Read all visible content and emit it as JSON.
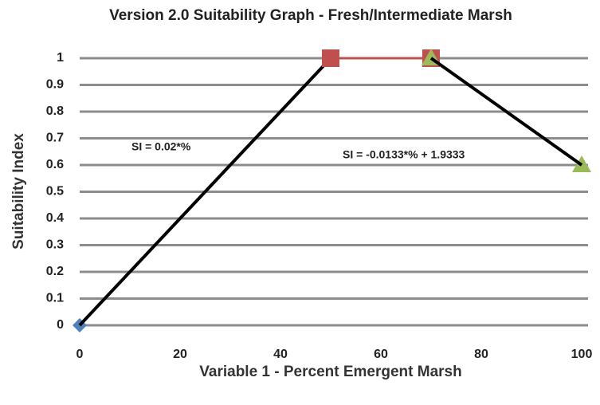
{
  "chart_data": {
    "type": "line",
    "title": "Version 2.0 Suitability Graph - Fresh/Intermediate Marsh",
    "xlabel": "Variable 1 - Percent Emergent Marsh",
    "ylabel": "Suitability Index",
    "xlim": [
      0,
      100
    ],
    "xticks": [
      0,
      20,
      40,
      60,
      80,
      100
    ],
    "ylim": [
      0,
      1
    ],
    "yticks": [
      0,
      0.1,
      0.2,
      0.3,
      0.4,
      0.5,
      0.6,
      0.7,
      0.8,
      0.9,
      1
    ],
    "grid": true,
    "series": [
      {
        "color": "#4f81bd",
        "marker": "diamond",
        "trendline": true,
        "x": [
          0,
          50
        ],
        "values": [
          0,
          1
        ]
      },
      {
        "color": "#c0504d",
        "marker": "square",
        "trendline": false,
        "x": [
          50,
          70
        ],
        "values": [
          1,
          1
        ]
      },
      {
        "color": "#9bbb59",
        "marker": "triangle",
        "trendline": true,
        "x": [
          70,
          100
        ],
        "values": [
          1,
          0.6
        ]
      }
    ],
    "annotations": [
      "SI = 0.02*%",
      "SI = -0.0133*% + 1.9333"
    ]
  }
}
